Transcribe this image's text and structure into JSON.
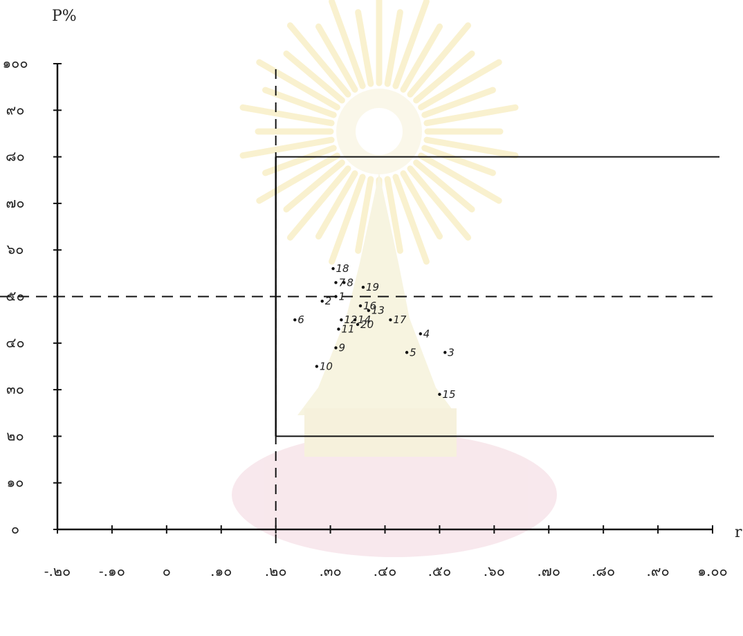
{
  "chart_data": {
    "type": "scatter",
    "title": "",
    "xlabel": "r",
    "ylabel": "P%",
    "xlim": [
      -0.2,
      1.0
    ],
    "ylim": [
      0,
      100
    ],
    "x_ticks": [
      -0.2,
      -0.1,
      0,
      0.1,
      0.2,
      0.3,
      0.4,
      0.5,
      0.6,
      0.7,
      0.8,
      0.9,
      1.0
    ],
    "x_tick_labels": [
      "-.๒๐",
      "-.๑๐",
      "๐",
      ".๑๐",
      ".๒๐",
      ".๓๐",
      ".๔๐",
      ".๕๐",
      ".๖๐",
      ".๗๐",
      ".๘๐",
      ".๙๐",
      "๑.๐๐"
    ],
    "y_ticks": [
      0,
      10,
      20,
      30,
      40,
      50,
      60,
      70,
      80,
      90,
      100
    ],
    "y_tick_labels": [
      "๐",
      "๑๐",
      "๒๐",
      "๓๐",
      "๔๐",
      "๕๐",
      "๖๐",
      "๗๐",
      "๘๐",
      "๙๐",
      "๑๐๐"
    ],
    "reference_lines": {
      "dashed_vertical_x": 0.2,
      "dashed_horizontal_y": 50,
      "solid_horizontal_upper_y": 80,
      "solid_horizontal_lower_y": 20,
      "solid_vertical_x": 0.2
    },
    "grid": false,
    "points": [
      {
        "label": "1",
        "x": 0.31,
        "y": 50
      },
      {
        "label": "2",
        "x": 0.285,
        "y": 49
      },
      {
        "label": "3",
        "x": 0.51,
        "y": 38
      },
      {
        "label": "4",
        "x": 0.465,
        "y": 42
      },
      {
        "label": "5",
        "x": 0.44,
        "y": 38
      },
      {
        "label": "6",
        "x": 0.235,
        "y": 45
      },
      {
        "label": "7",
        "x": 0.31,
        "y": 53
      },
      {
        "label": "8",
        "x": 0.325,
        "y": 53
      },
      {
        "label": "9",
        "x": 0.31,
        "y": 39
      },
      {
        "label": "10",
        "x": 0.275,
        "y": 35
      },
      {
        "label": "11",
        "x": 0.315,
        "y": 43
      },
      {
        "label": "12",
        "x": 0.32,
        "y": 45
      },
      {
        "label": "13",
        "x": 0.37,
        "y": 47
      },
      {
        "label": "14",
        "x": 0.345,
        "y": 45
      },
      {
        "label": "15",
        "x": 0.5,
        "y": 29
      },
      {
        "label": "16",
        "x": 0.355,
        "y": 48
      },
      {
        "label": "17",
        "x": 0.41,
        "y": 45
      },
      {
        "label": "18",
        "x": 0.305,
        "y": 56
      },
      {
        "label": "19",
        "x": 0.36,
        "y": 52
      },
      {
        "label": "20",
        "x": 0.35,
        "y": 44
      }
    ]
  }
}
